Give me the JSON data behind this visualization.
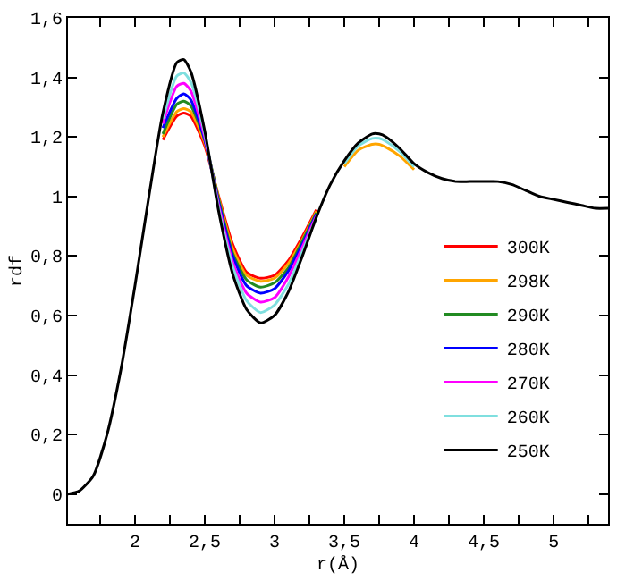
{
  "chart_data": {
    "type": "line",
    "xlabel": "r(Å)",
    "ylabel": "rdf",
    "x": [
      1.52,
      1.6,
      1.7,
      1.8,
      1.9,
      2.0,
      2.1,
      2.2,
      2.3,
      2.35,
      2.4,
      2.5,
      2.6,
      2.7,
      2.8,
      2.9,
      3.0,
      3.1,
      3.2,
      3.3,
      3.4,
      3.5,
      3.6,
      3.7,
      3.75,
      3.8,
      3.9,
      4.0,
      4.1,
      4.2,
      4.3,
      4.4,
      4.5,
      4.6,
      4.7,
      4.8,
      4.9,
      5.0,
      5.1,
      5.2,
      5.3,
      5.39
    ],
    "series": [
      {
        "name": "300K",
        "color": "#ff0000",
        "values": [
          null,
          null,
          null,
          null,
          null,
          null,
          null,
          1.19,
          1.27,
          1.28,
          1.27,
          1.17,
          1.0,
          0.84,
          0.745,
          0.725,
          0.735,
          0.785,
          0.865,
          0.955,
          null,
          null,
          null,
          null,
          null,
          null,
          null,
          null,
          null,
          null,
          null,
          null,
          null,
          null,
          null,
          null,
          null,
          null,
          null,
          null,
          null,
          null
        ]
      },
      {
        "name": "298K",
        "color": "#ffa500",
        "values": [
          null,
          null,
          null,
          null,
          null,
          null,
          null,
          1.2,
          1.285,
          1.295,
          1.285,
          1.18,
          0.995,
          0.825,
          0.735,
          0.715,
          0.725,
          0.775,
          0.855,
          0.95,
          null,
          1.1,
          1.155,
          1.175,
          1.175,
          1.165,
          1.135,
          1.09,
          null,
          null,
          null,
          null,
          null,
          null,
          null,
          null,
          null,
          null,
          null,
          null,
          null,
          null
        ]
      },
      {
        "name": "290K",
        "color": "#228b22",
        "values": [
          null,
          null,
          null,
          null,
          null,
          null,
          null,
          1.21,
          1.31,
          1.32,
          1.305,
          1.19,
          0.99,
          0.81,
          0.72,
          0.695,
          0.71,
          0.76,
          0.85,
          0.945,
          null,
          null,
          null,
          null,
          null,
          null,
          null,
          null,
          null,
          null,
          null,
          null,
          null,
          null,
          null,
          null,
          null,
          null,
          null,
          null,
          null,
          null
        ]
      },
      {
        "name": "280K",
        "color": "#0000ff",
        "values": [
          null,
          null,
          null,
          null,
          null,
          null,
          null,
          1.23,
          1.33,
          1.345,
          1.325,
          1.19,
          0.98,
          0.8,
          0.7,
          0.675,
          0.69,
          0.75,
          0.84,
          0.94,
          null,
          null,
          null,
          null,
          null,
          null,
          null,
          null,
          null,
          null,
          null,
          null,
          null,
          null,
          null,
          null,
          null,
          null,
          null,
          null,
          null,
          null
        ]
      },
      {
        "name": "270K",
        "color": "#ff00ff",
        "values": [
          null,
          null,
          null,
          null,
          null,
          null,
          null,
          1.245,
          1.37,
          1.38,
          1.355,
          1.2,
          0.97,
          0.78,
          0.675,
          0.645,
          0.66,
          0.73,
          0.83,
          0.935,
          null,
          null,
          null,
          null,
          null,
          null,
          null,
          null,
          null,
          null,
          null,
          null,
          null,
          null,
          null,
          null,
          null,
          null,
          null,
          null,
          null,
          null
        ]
      },
      {
        "name": "260K",
        "color": "#7fdfdf",
        "values": [
          null,
          null,
          null,
          null,
          null,
          null,
          null,
          1.26,
          1.405,
          1.415,
          1.385,
          1.21,
          0.96,
          0.765,
          0.65,
          0.61,
          0.635,
          0.705,
          0.815,
          0.93,
          null,
          1.11,
          1.17,
          1.195,
          1.195,
          1.185,
          1.15,
          1.1,
          null,
          null,
          null,
          null,
          null,
          null,
          null,
          null,
          null,
          null,
          null,
          null,
          null,
          null
        ]
      },
      {
        "name": "250K",
        "color": "#000000",
        "values": [
          0,
          0.01,
          0.06,
          0.2,
          0.42,
          0.7,
          1.0,
          1.28,
          1.45,
          1.46,
          1.42,
          1.22,
          0.95,
          0.74,
          0.62,
          0.575,
          0.6,
          0.68,
          0.8,
          0.93,
          1.04,
          1.12,
          1.18,
          1.21,
          1.21,
          1.2,
          1.16,
          1.11,
          1.08,
          1.06,
          1.05,
          1.05,
          1.05,
          1.05,
          1.04,
          1.02,
          1.0,
          0.99,
          0.98,
          0.97,
          0.96,
          0.96
        ]
      }
    ],
    "xlim": [
      1.52,
      5.39
    ],
    "xticks": [
      {
        "value": 1.75,
        "label": null
      },
      2,
      {
        "value": 2.25,
        "label": null
      },
      {
        "value": 2.5,
        "label": "2,5"
      },
      {
        "value": 2.75,
        "label": null
      },
      3,
      {
        "value": 3.25,
        "label": null
      },
      {
        "value": 3.5,
        "label": "3,5"
      },
      {
        "value": 3.75,
        "label": null
      },
      4,
      {
        "value": 4.25,
        "label": null
      },
      {
        "value": 4.5,
        "label": "4,5"
      },
      {
        "value": 4.75,
        "label": null
      },
      5,
      {
        "value": 5.25,
        "label": null
      }
    ],
    "ylim": [
      -0.1,
      1.6
    ],
    "yticks": [
      0,
      {
        "value": 0.2,
        "label": "0,2"
      },
      {
        "value": 0.4,
        "label": "0,4"
      },
      {
        "value": 0.6,
        "label": "0,6"
      },
      {
        "value": 0.8,
        "label": "0,8"
      },
      1,
      {
        "value": 1.2,
        "label": "1,2"
      },
      {
        "value": 1.4,
        "label": "1,4"
      },
      {
        "value": 1.6,
        "label": "1,6"
      }
    ],
    "legend": "right",
    "marker": "none",
    "line_style": "solid"
  }
}
